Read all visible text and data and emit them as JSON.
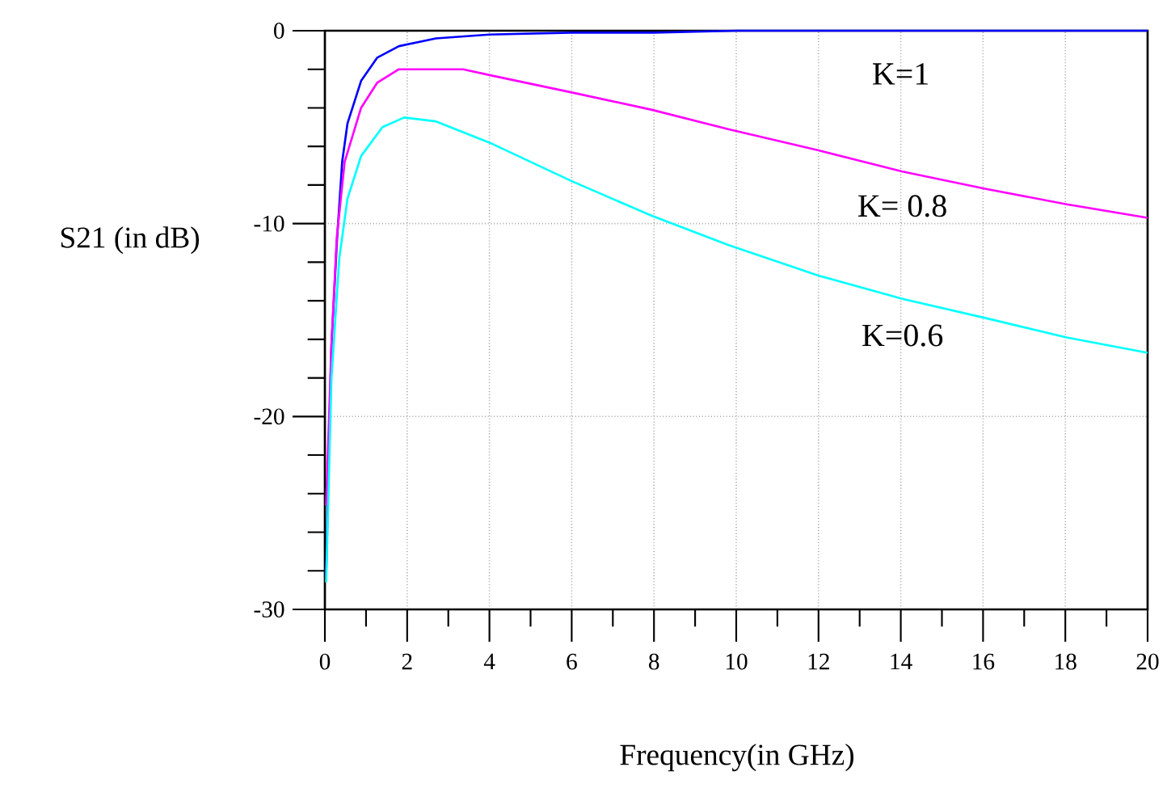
{
  "chart_data": {
    "type": "line",
    "xlabel": "Frequency(in GHz)",
    "ylabel": "S21 (in dB)",
    "xlim": [
      0,
      20
    ],
    "ylim": [
      -30,
      0
    ],
    "xticks": [
      0,
      {
        "value": 1,
        "label": null
      },
      2,
      {
        "value": 3,
        "label": null
      },
      4,
      {
        "value": 5,
        "label": null
      },
      6,
      {
        "value": 7,
        "label": null
      },
      8,
      {
        "value": 9,
        "label": null
      },
      10,
      {
        "value": 11,
        "label": null
      },
      12,
      {
        "value": 13,
        "label": null
      },
      14,
      {
        "value": 15,
        "label": null
      },
      16,
      {
        "value": 17,
        "label": null
      },
      18,
      {
        "value": 19,
        "label": null
      },
      20
    ],
    "yticks": [
      -30,
      {
        "value": -28,
        "label": null
      },
      {
        "value": -26,
        "label": null
      },
      {
        "value": -24,
        "label": null
      },
      {
        "value": -22,
        "label": null
      },
      -20,
      {
        "value": -18,
        "label": null
      },
      {
        "value": -16,
        "label": null
      },
      {
        "value": -14,
        "label": null
      },
      {
        "value": -12,
        "label": null
      },
      -10,
      {
        "value": -8,
        "label": null
      },
      {
        "value": -6,
        "label": null
      },
      {
        "value": -4,
        "label": null
      },
      {
        "value": -2,
        "label": null
      },
      0
    ],
    "grid": true,
    "legend": false,
    "marker": "none",
    "line_style": "solid",
    "series": [
      {
        "name": "K=1",
        "color": "#0000ff",
        "x": [
          0.03,
          0.09,
          0.16,
          0.29,
          0.42,
          0.55,
          0.88,
          1.27,
          1.8,
          2.7,
          4,
          6,
          8,
          10,
          12,
          14,
          16,
          18,
          20
        ],
        "values": [
          -28.3,
          -22.5,
          -16.3,
          -11,
          -6.8,
          -4.8,
          -2.6,
          -1.4,
          -0.8,
          -0.4,
          -0.2,
          -0.1,
          -0.1,
          0,
          0,
          0,
          0,
          0,
          0
        ]
      },
      {
        "name": "K= 0.8",
        "color": "#ff00ff",
        "x": [
          0.03,
          0.16,
          0.29,
          0.48,
          0.88,
          1.27,
          1.8,
          3.36,
          4,
          6,
          7.95,
          9.8,
          12,
          14.04,
          16.07,
          18.03,
          20
        ],
        "values": [
          -24.6,
          -16.3,
          -10.7,
          -6.8,
          -4,
          -2.7,
          -2,
          -2,
          -2.3,
          -3.2,
          -4.1,
          -5.1,
          -6.2,
          -7.3,
          -8.2,
          -9,
          -9.7
        ]
      },
      {
        "name": "K=0.6",
        "color": "#00ffff",
        "x": [
          0.03,
          0.16,
          0.35,
          0.55,
          0.88,
          1.4,
          1.93,
          2.7,
          4,
          6,
          7.95,
          9.8,
          12,
          14.04,
          16.07,
          18.03,
          20
        ],
        "values": [
          -28.6,
          -18,
          -11.8,
          -8.7,
          -6.5,
          -5,
          -4.5,
          -4.7,
          -5.8,
          -7.8,
          -9.6,
          -11.1,
          -12.7,
          -13.9,
          -14.9,
          -15.9,
          -16.7
        ]
      }
    ]
  }
}
